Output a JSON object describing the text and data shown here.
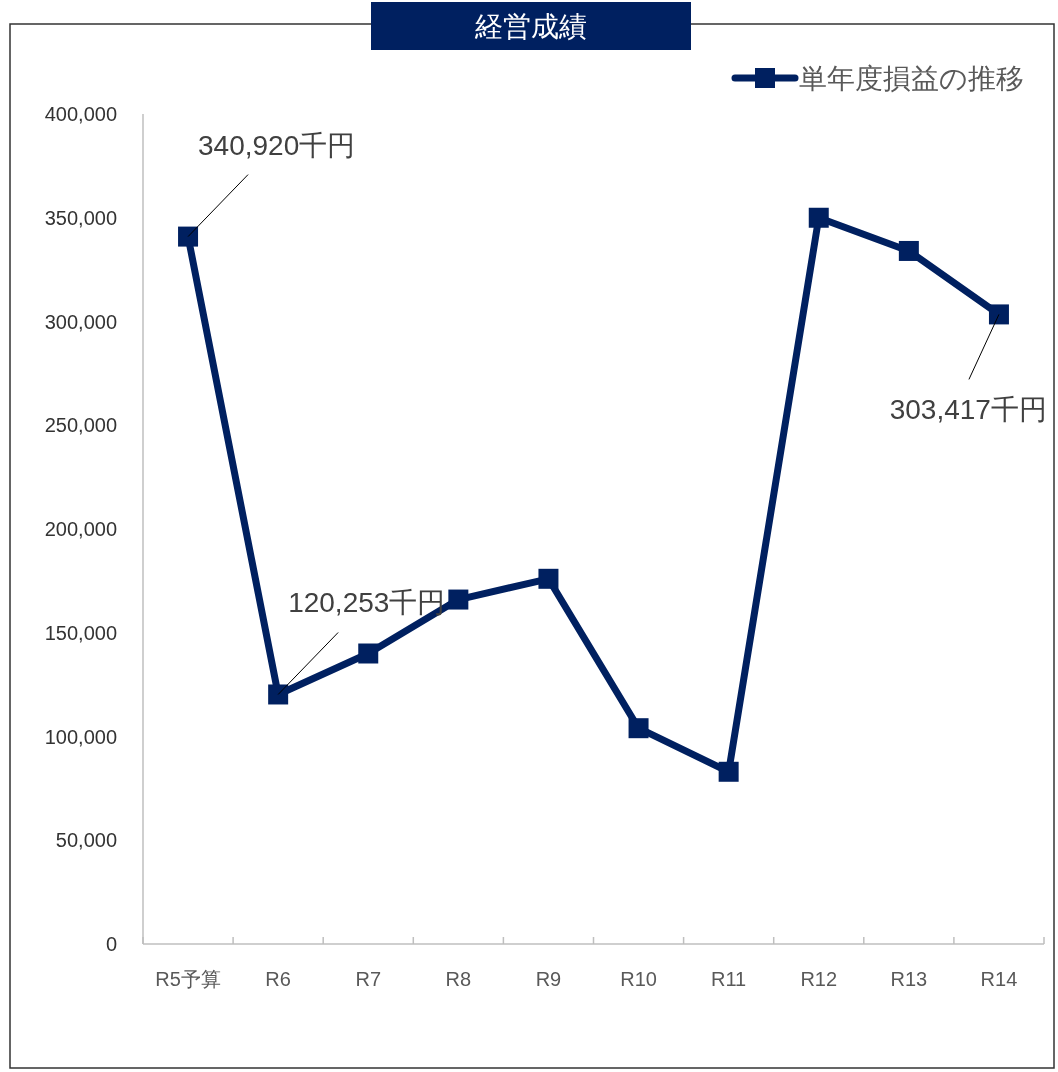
{
  "chart_data": {
    "type": "line",
    "title": "経営成績",
    "categories": [
      "R5予算",
      "R6",
      "R7",
      "R8",
      "R9",
      "R10",
      "R11",
      "R12",
      "R13",
      "R14"
    ],
    "series": [
      {
        "name": "単年度損益の推移",
        "color": "#002060",
        "values": [
          340920,
          120253,
          140000,
          166000,
          176000,
          104000,
          83000,
          350000,
          334000,
          303417
        ]
      }
    ],
    "ylim": [
      0,
      400000
    ],
    "yticks": [
      {
        "value": 0,
        "label": "0"
      },
      {
        "value": 50000,
        "label": "50,000"
      },
      {
        "value": 100000,
        "label": "100,000"
      },
      {
        "value": 150000,
        "label": "150,000"
      },
      {
        "value": 200000,
        "label": "200,000"
      },
      {
        "value": 250000,
        "label": "250,000"
      },
      {
        "value": 300000,
        "label": "300,000"
      },
      {
        "value": 350000,
        "label": "350,000"
      },
      {
        "value": 400000,
        "label": "400,000"
      }
    ],
    "legend": "top right",
    "marker": "square",
    "line_style": "solid",
    "grid": false,
    "annotations": [
      {
        "text": "340,920千円",
        "x": "R5予算",
        "y": 340920
      },
      {
        "text": "120,253千円",
        "x": "R6",
        "y": 120253
      },
      {
        "text": "303,417千円",
        "x": "R14",
        "y": 303417
      }
    ]
  }
}
